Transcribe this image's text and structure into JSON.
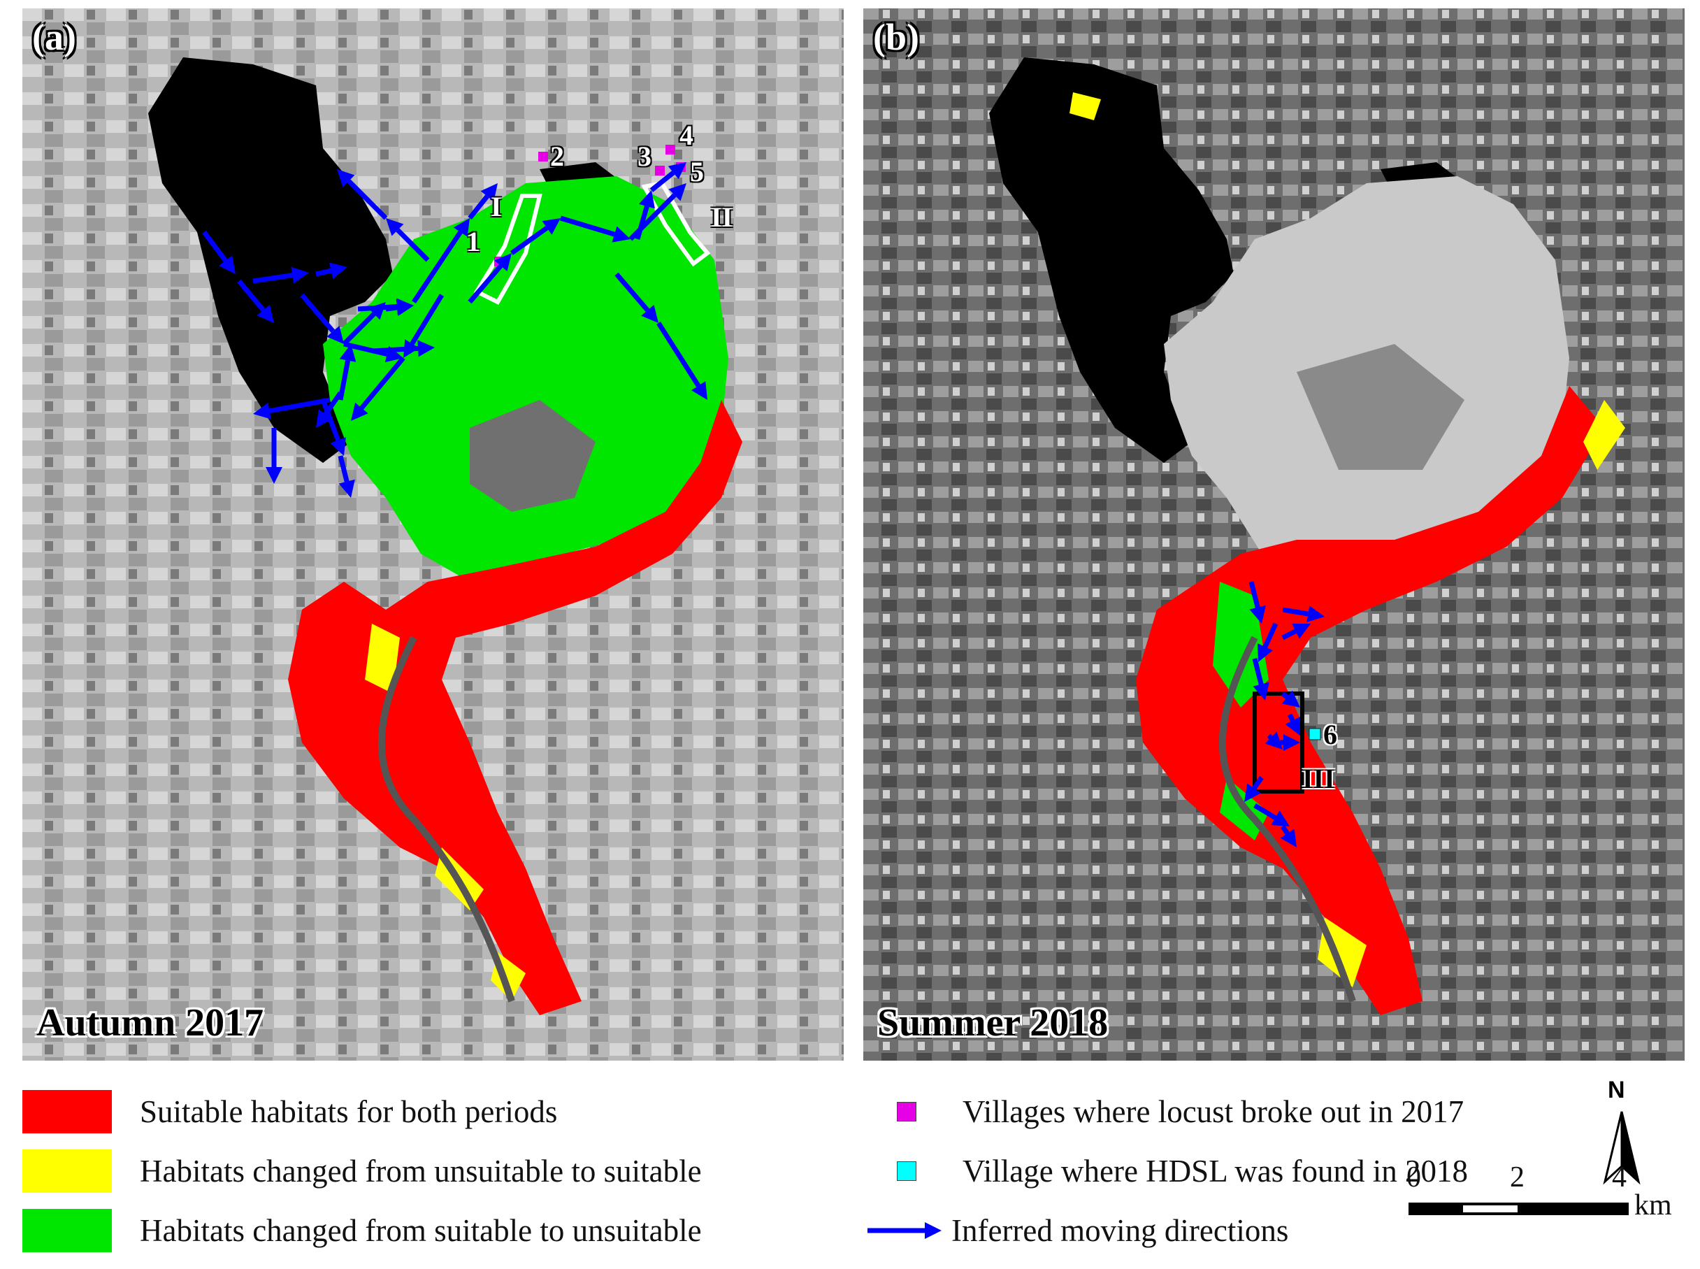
{
  "panels": [
    {
      "letter": "(a)",
      "season": "Autumn 2017"
    },
    {
      "letter": "(b)",
      "season": "Summer 2018"
    }
  ],
  "zones": {
    "zone_1": "I",
    "zone_2": "II",
    "zone_3": "III"
  },
  "villages": [
    "1",
    "2",
    "3",
    "4",
    "5",
    "6"
  ],
  "legend": {
    "left": [
      {
        "label": "Suitable habitats for both periods",
        "color": "#ff0000"
      },
      {
        "label": "Habitats changed from unsuitable to suitable",
        "color": "#ffff00"
      },
      {
        "label": "Habitats changed from suitable to unsuitable",
        "color": "#00e600"
      }
    ],
    "right": [
      {
        "label": "Villages where locust broke out  in 2017",
        "color": "#e600e6"
      },
      {
        "label": "Village where HDSL was found in 2018",
        "color": "#00ffff"
      },
      {
        "label": "Inferred moving directions",
        "color": "#0000ff"
      }
    ]
  },
  "north_label": "N",
  "scale": {
    "ticks": [
      "0",
      "2",
      "4"
    ],
    "unit": "km"
  },
  "colors": {
    "water": "#000000",
    "suitable_both": "#ff0000",
    "to_suitable": "#ffff00",
    "to_unsuitable": "#00e600",
    "arrow": "#0000ff"
  }
}
